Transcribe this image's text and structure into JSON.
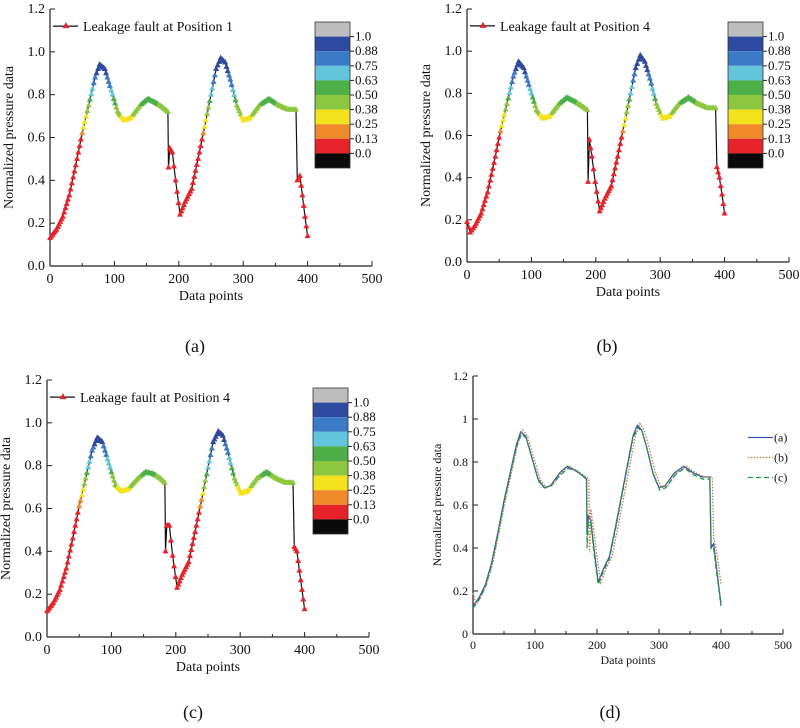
{
  "chart_data": [
    {
      "id": "a",
      "caption": "(a)",
      "type": "scatter",
      "xlabel": "Data points",
      "ylabel": "Normalized pressure data",
      "xlim": [
        0,
        500
      ],
      "ylim": [
        0,
        1.2
      ],
      "xticks": [
        "0",
        "100",
        "200",
        "300",
        "400",
        "500"
      ],
      "yticks": [
        "0.0",
        "0.2",
        "0.4",
        "0.6",
        "0.8",
        "1.0",
        "1.2"
      ],
      "legend": "Leakage fault at Position 1",
      "legend_placement": "top",
      "colorbar": {
        "labels": [
          "1.0",
          "0.88",
          "0.75",
          "0.63",
          "0.50",
          "0.38",
          "0.25",
          "0.13",
          "0.0"
        ],
        "colors": [
          "#bdbdbd",
          "#2d4aa0",
          "#3b7ac6",
          "#62c5dc",
          "#4caf48",
          "#8dc63f",
          "#f4e31c",
          "#f0892a",
          "#e62329",
          "#0a0a0a"
        ]
      },
      "x": [
        0,
        10,
        20,
        30,
        40,
        50,
        60,
        70,
        77,
        85,
        95,
        105,
        115,
        125,
        140,
        152,
        165,
        175,
        183,
        184,
        186,
        190,
        195,
        202,
        210,
        220,
        230,
        240,
        250,
        258,
        265,
        272,
        280,
        290,
        300,
        310,
        325,
        340,
        355,
        370,
        382,
        384,
        388,
        392,
        396,
        400
      ],
      "y": [
        0.13,
        0.17,
        0.23,
        0.33,
        0.47,
        0.62,
        0.75,
        0.88,
        0.94,
        0.92,
        0.82,
        0.72,
        0.68,
        0.69,
        0.75,
        0.78,
        0.76,
        0.74,
        0.72,
        0.46,
        0.55,
        0.53,
        0.4,
        0.24,
        0.3,
        0.36,
        0.5,
        0.65,
        0.8,
        0.92,
        0.97,
        0.95,
        0.87,
        0.75,
        0.68,
        0.69,
        0.75,
        0.78,
        0.75,
        0.73,
        0.73,
        0.4,
        0.42,
        0.33,
        0.23,
        0.14
      ]
    },
    {
      "id": "b",
      "caption": "(b)",
      "type": "scatter",
      "xlabel": "Data points",
      "ylabel": "Normalized pressure data",
      "xlim": [
        0,
        500
      ],
      "ylim": [
        0,
        1.2
      ],
      "xticks": [
        "0",
        "100",
        "200",
        "300",
        "400",
        "500"
      ],
      "yticks": [
        "0.0",
        "0.2",
        "0.4",
        "0.6",
        "0.8",
        "1.0",
        "1.2"
      ],
      "legend": "Leakage fault at Position 4",
      "legend_placement": "top",
      "colorbar": {
        "labels": [
          "1.0",
          "0.88",
          "0.75",
          "0.63",
          "0.50",
          "0.38",
          "0.25",
          "0.13",
          "0.0"
        ],
        "colors": [
          "#bdbdbd",
          "#2d4aa0",
          "#3b7ac6",
          "#62c5dc",
          "#4caf48",
          "#8dc63f",
          "#f4e31c",
          "#f0892a",
          "#e62329",
          "#0a0a0a"
        ]
      },
      "x": [
        0,
        5,
        12,
        22,
        32,
        42,
        52,
        62,
        72,
        80,
        88,
        98,
        108,
        118,
        128,
        143,
        155,
        168,
        178,
        187,
        188,
        190,
        194,
        199,
        206,
        214,
        224,
        234,
        244,
        254,
        262,
        269,
        276,
        284,
        294,
        304,
        314,
        329,
        344,
        359,
        374,
        386,
        388,
        392,
        396,
        400
      ],
      "y": [
        0.19,
        0.14,
        0.17,
        0.23,
        0.33,
        0.47,
        0.62,
        0.75,
        0.88,
        0.95,
        0.92,
        0.82,
        0.72,
        0.68,
        0.69,
        0.75,
        0.78,
        0.76,
        0.74,
        0.72,
        0.38,
        0.58,
        0.5,
        0.38,
        0.24,
        0.3,
        0.36,
        0.5,
        0.65,
        0.8,
        0.92,
        0.98,
        0.95,
        0.87,
        0.75,
        0.68,
        0.69,
        0.75,
        0.78,
        0.75,
        0.73,
        0.73,
        0.45,
        0.4,
        0.32,
        0.23
      ]
    },
    {
      "id": "c",
      "caption": "(c)",
      "type": "scatter",
      "xlabel": "Data points",
      "ylabel": "Normalized pressure data",
      "xlim": [
        0,
        500
      ],
      "ylim": [
        0,
        1.2
      ],
      "xticks": [
        "0",
        "100",
        "200",
        "300",
        "400",
        "500"
      ],
      "yticks": [
        "0.0",
        "0.2",
        "0.4",
        "0.6",
        "0.8",
        "1.0",
        "1.2"
      ],
      "legend": "Leakage fault at Position 4",
      "legend_placement": "top",
      "colorbar": {
        "labels": [
          "1.0",
          "0.88",
          "0.75",
          "0.63",
          "0.50",
          "0.38",
          "0.25",
          "0.13",
          "0.0"
        ],
        "colors": [
          "#bdbdbd",
          "#2d4aa0",
          "#3b7ac6",
          "#62c5dc",
          "#4caf48",
          "#8dc63f",
          "#f4e31c",
          "#f0892a",
          "#e62329",
          "#0a0a0a"
        ]
      },
      "x": [
        0,
        10,
        20,
        30,
        40,
        50,
        60,
        70,
        78,
        86,
        96,
        106,
        116,
        126,
        141,
        153,
        166,
        176,
        183,
        184,
        186,
        190,
        195,
        202,
        210,
        220,
        230,
        240,
        250,
        258,
        266,
        273,
        281,
        291,
        301,
        311,
        326,
        341,
        356,
        371,
        382,
        384,
        388,
        392,
        396,
        400
      ],
      "y": [
        0.12,
        0.16,
        0.22,
        0.32,
        0.46,
        0.61,
        0.74,
        0.87,
        0.93,
        0.91,
        0.81,
        0.71,
        0.68,
        0.69,
        0.74,
        0.77,
        0.76,
        0.74,
        0.72,
        0.4,
        0.52,
        0.52,
        0.38,
        0.23,
        0.29,
        0.35,
        0.49,
        0.64,
        0.79,
        0.91,
        0.96,
        0.94,
        0.86,
        0.74,
        0.67,
        0.68,
        0.74,
        0.77,
        0.74,
        0.72,
        0.72,
        0.42,
        0.4,
        0.31,
        0.22,
        0.13
      ]
    },
    {
      "id": "d",
      "caption": "(d)",
      "type": "line",
      "xlabel": "Data points",
      "ylabel": "Normalized pressure data",
      "xlim": [
        0,
        500
      ],
      "ylim": [
        0,
        1.2
      ],
      "xticks": [
        "0",
        "100",
        "200",
        "300",
        "400",
        "500"
      ],
      "yticks": [
        "0",
        "0.2",
        "0.4",
        "0.6",
        "0.8",
        "1",
        "1.2"
      ],
      "legend_placement": "right",
      "series": [
        {
          "name": "(a)",
          "color": "#3a55b0",
          "style": "solid",
          "ref": 0
        },
        {
          "name": "(b)",
          "color": "#c87840",
          "style": "dotted",
          "ref": 1
        },
        {
          "name": "(c)",
          "color": "#1f9a48",
          "style": "dashed",
          "ref": 2
        }
      ]
    }
  ]
}
